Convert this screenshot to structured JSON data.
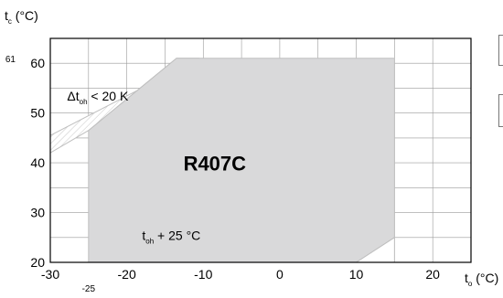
{
  "chart_data": {
    "type": "area",
    "xlim": [
      -30,
      25
    ],
    "ylim": [
      20,
      65
    ],
    "xticks": [
      -30,
      -20,
      -10,
      0,
      10,
      20
    ],
    "xtick_labels": [
      "-30",
      "-20",
      "-10",
      "0",
      "10",
      "20"
    ],
    "yticks": [
      20,
      30,
      40,
      50,
      60
    ],
    "ytick_labels": [
      "20",
      "30",
      "40",
      "50",
      "60"
    ],
    "extra_x_tick": {
      "value": -25,
      "label": "-25"
    },
    "extra_y_tick": {
      "value": 61,
      "label": "61"
    },
    "grid": true,
    "y_axis": {
      "symbol": "t",
      "sub": "c",
      "unit": " (°C)"
    },
    "x_axis": {
      "symbol": "t",
      "sub": "o",
      "unit": " (°C)"
    },
    "envelope": {
      "label": "R407C",
      "points": [
        [
          -25,
          20
        ],
        [
          10,
          20
        ],
        [
          15,
          25
        ],
        [
          15,
          61
        ],
        [
          -13.5,
          61
        ],
        [
          -25,
          46.5
        ]
      ]
    },
    "hatched_band": {
      "points": [
        [
          -30,
          42
        ],
        [
          -25,
          46.5
        ],
        [
          -13.5,
          61
        ],
        [
          -10.5,
          61
        ],
        [
          -30,
          45.5
        ]
      ]
    },
    "lower_band": {
      "points": [
        [
          10,
          20
        ],
        [
          15,
          20
        ],
        [
          15,
          25
        ]
      ]
    },
    "annotations": [
      {
        "id": "delta",
        "prefix": "Δt",
        "sub": "oh",
        "suffix": " < 20 K",
        "x": -27.8,
        "y": 52.5
      },
      {
        "id": "superheat",
        "prefix": "t",
        "sub": "oh",
        "suffix": " + 25 °C",
        "x": -18,
        "y": 24.5
      }
    ]
  },
  "colors": {
    "envelope_fill": "#d9d9da",
    "envelope_stroke": "#bfbfbf",
    "grid": "#9a9a9a",
    "axis": "#000000"
  }
}
